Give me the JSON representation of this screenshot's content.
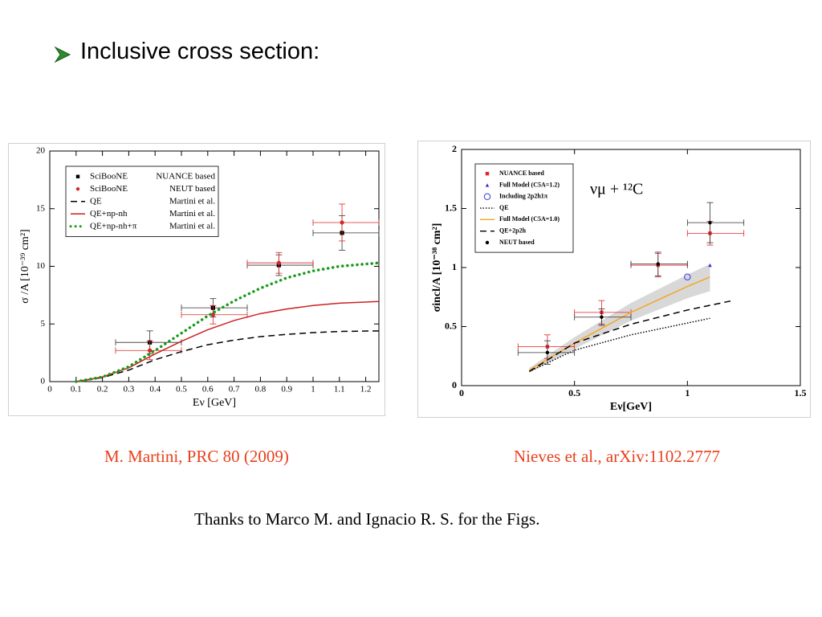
{
  "title": "Inclusive cross section:",
  "captions": [
    "M. Martini, PRC 80 (2009)",
    "Nieves et al., arXiv:1102.2777"
  ],
  "footer": "Thanks to Marco M. and Ignacio R. S. for the Figs.",
  "chart_data": [
    {
      "type": "line",
      "xlabel": "Eν [GeV]",
      "ylabel": "σ /A [10⁻³⁹ cm²]",
      "xlim": [
        0,
        1.25
      ],
      "ylim": [
        0,
        20
      ],
      "xticks": [
        0,
        0.1,
        0.2,
        0.3,
        0.4,
        0.5,
        0.6,
        0.7,
        0.8,
        0.9,
        1,
        1.1,
        1.2
      ],
      "yticks": [
        0,
        5,
        10,
        15,
        20
      ],
      "legend": "upper left",
      "series": [
        {
          "name": "SciBooNE",
          "note": "NUANCE based",
          "color": "#000000",
          "marker": "square",
          "x": [
            0.38,
            0.62,
            0.87,
            1.11
          ],
          "values": [
            3.4,
            6.4,
            10.1,
            12.9
          ],
          "yerr": [
            1.0,
            0.8,
            0.9,
            1.5
          ],
          "xlow": [
            0.25,
            0.5,
            0.75,
            1.0
          ],
          "xhigh": [
            0.5,
            0.75,
            1.0,
            1.25
          ]
        },
        {
          "name": "SciBooNE",
          "note": "NEUT based",
          "color": "#d62728",
          "marker": "circle",
          "x": [
            0.38,
            0.62,
            0.87,
            1.11
          ],
          "values": [
            2.7,
            5.8,
            10.3,
            13.8
          ],
          "yerr": [
            0.8,
            0.8,
            0.9,
            1.6
          ],
          "xlow": [
            0.25,
            0.5,
            0.75,
            1.0
          ],
          "xhigh": [
            0.5,
            0.75,
            1.0,
            1.25
          ]
        },
        {
          "name": "QE",
          "note": "Martini et al.",
          "color": "#000000",
          "line": "dashed",
          "x": [
            0.1,
            0.2,
            0.3,
            0.4,
            0.5,
            0.6,
            0.7,
            0.8,
            0.9,
            1.0,
            1.1,
            1.25
          ],
          "values": [
            0,
            0.35,
            1.0,
            1.9,
            2.6,
            3.2,
            3.6,
            3.9,
            4.1,
            4.25,
            4.35,
            4.4
          ]
        },
        {
          "name": "QE+np-nh",
          "note": "Martini et al.",
          "color": "#cc2222",
          "line": "solid",
          "x": [
            0.1,
            0.2,
            0.3,
            0.4,
            0.5,
            0.6,
            0.7,
            0.8,
            0.9,
            1.0,
            1.1,
            1.25
          ],
          "values": [
            0,
            0.4,
            1.2,
            2.4,
            3.5,
            4.5,
            5.3,
            5.9,
            6.3,
            6.6,
            6.8,
            6.95
          ]
        },
        {
          "name": "QE+np-nh+π",
          "note": "Martini et al.",
          "color": "#1a9a1a",
          "line": "dotted",
          "x": [
            0.1,
            0.2,
            0.3,
            0.4,
            0.5,
            0.6,
            0.7,
            0.8,
            0.9,
            1.0,
            1.1,
            1.25
          ],
          "values": [
            0,
            0.4,
            1.3,
            2.7,
            4.2,
            5.7,
            7.0,
            8.1,
            9.0,
            9.6,
            10.0,
            10.3
          ]
        }
      ]
    },
    {
      "type": "line",
      "xlabel": "Eν[GeV]",
      "ylabel": "σincl/A [10⁻³⁸ cm²]",
      "annotation": "νμ + ¹²C",
      "xlim": [
        0,
        1.5
      ],
      "ylim": [
        0,
        2
      ],
      "xticks": [
        0,
        0.5,
        1,
        1.5
      ],
      "yticks": [
        0,
        0.5,
        1,
        1.5,
        2
      ],
      "legend": "upper left",
      "band": {
        "color": "#c8c8c8",
        "x": [
          0.3,
          0.5,
          0.75,
          1.0,
          1.1
        ],
        "low": [
          0.11,
          0.31,
          0.55,
          0.74,
          0.8
        ],
        "high": [
          0.15,
          0.41,
          0.7,
          0.94,
          1.03
        ]
      },
      "series": [
        {
          "name": "NUANCE based",
          "color": "#e8202a",
          "marker": "square",
          "x": [
            0.38,
            0.62,
            0.87,
            1.1
          ],
          "values": [
            0.33,
            0.62,
            1.02,
            1.29
          ],
          "yerr": [
            0.1,
            0.1,
            0.1,
            0.1
          ],
          "xlow": [
            0.25,
            0.5,
            0.75,
            1.0
          ],
          "xhigh": [
            0.5,
            0.75,
            1.0,
            1.25
          ]
        },
        {
          "name": "Full Model (C5A=1.2)",
          "color": "#3a2ad0",
          "marker": "triangle",
          "x": [
            1.1
          ],
          "values": [
            1.02
          ]
        },
        {
          "name": "Including 2p2h1π",
          "color": "#3a3ae0",
          "marker": "open-circle",
          "x": [
            1.0
          ],
          "values": [
            0.92
          ]
        },
        {
          "name": "QE",
          "color": "#000000",
          "line": "dotted-fine",
          "x": [
            0.3,
            0.5,
            0.75,
            1.0,
            1.1
          ],
          "values": [
            0.12,
            0.3,
            0.43,
            0.53,
            0.57
          ]
        },
        {
          "name": "Full Model (C5A=1.0)",
          "color": "#f5a623",
          "line": "solid",
          "x": [
            0.3,
            0.5,
            0.75,
            1.0,
            1.1
          ],
          "values": [
            0.13,
            0.36,
            0.62,
            0.84,
            0.92
          ]
        },
        {
          "name": "QE+2p2h",
          "color": "#000000",
          "line": "dashed",
          "x": [
            0.3,
            0.5,
            0.75,
            1.0,
            1.2
          ],
          "values": [
            0.12,
            0.36,
            0.52,
            0.64,
            0.72
          ]
        },
        {
          "name": "NEUT based",
          "color": "#000000",
          "marker": "circle",
          "x": [
            0.38,
            0.62,
            0.87,
            1.1
          ],
          "values": [
            0.28,
            0.58,
            1.03,
            1.38
          ],
          "yerr": [
            0.1,
            0.07,
            0.1,
            0.17
          ],
          "xlow": [
            0.25,
            0.5,
            0.75,
            1.0
          ],
          "xhigh": [
            0.5,
            0.75,
            1.0,
            1.25
          ]
        }
      ]
    }
  ]
}
